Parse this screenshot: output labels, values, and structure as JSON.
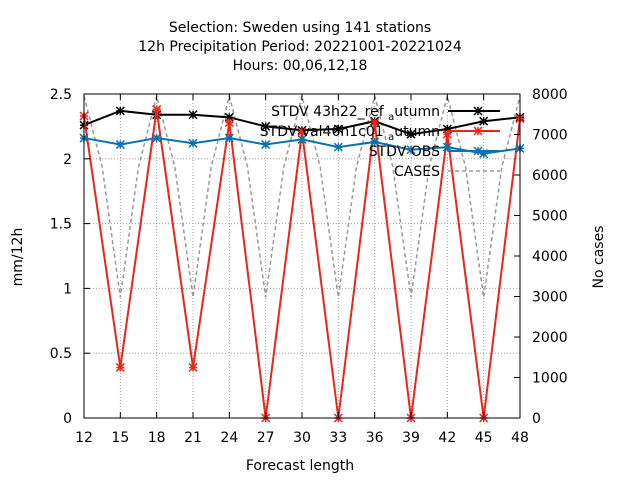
{
  "chart_data": {
    "type": "line",
    "title_lines": [
      "Selection: Sweden using   141 stations",
      "12h Precipitation   Period: 20221001-20221024",
      "Hours:  00,06,12,18"
    ],
    "xlabel": "Forecast length",
    "ylabel": "mm/12h",
    "y2label": "No cases",
    "x": [
      12,
      15,
      18,
      21,
      24,
      27,
      30,
      33,
      36,
      39,
      42,
      45,
      48
    ],
    "xlim": [
      12,
      48
    ],
    "ylim": [
      0,
      2.5
    ],
    "y2lim": [
      0,
      8000
    ],
    "yticks": [
      "0",
      "0.5",
      "1",
      "1.5",
      "2",
      "2.5"
    ],
    "y2ticks": [
      "0",
      "1000",
      "2000",
      "3000",
      "4000",
      "5000",
      "6000",
      "7000",
      "8000"
    ],
    "grid": true,
    "legend_position": "top-right",
    "series": [
      {
        "name": "STDV 43h22_ref_autumn",
        "name_main": "STDV 43h22_ref",
        "name_sub": "a",
        "name_tail": "utumn",
        "axis": "y",
        "color": "#000000",
        "marker": "star",
        "values": [
          2.26,
          2.37,
          2.34,
          2.34,
          2.32,
          2.25,
          2.22,
          2.23,
          2.29,
          2.19,
          2.23,
          2.29,
          2.32
        ]
      },
      {
        "name": "STDV val46h1c01_autumn",
        "name_main": "STDV val46h1c01",
        "name_sub": "a",
        "name_tail": "utumn",
        "axis": "y",
        "color": "#e8261c",
        "marker": "star",
        "values": [
          2.33,
          0.39,
          2.38,
          0.39,
          2.28,
          0.0,
          2.21,
          0.0,
          2.28,
          0.0,
          2.19,
          0.0,
          2.31
        ]
      },
      {
        "name": "STDV OBS",
        "axis": "y",
        "color": "#0a73ad",
        "marker": "star",
        "values": [
          2.16,
          2.11,
          2.16,
          2.12,
          2.16,
          2.11,
          2.15,
          2.09,
          2.13,
          2.07,
          2.09,
          2.04,
          2.08
        ]
      },
      {
        "name": "CASES",
        "axis": "y2",
        "color": "#999999",
        "dashed": true,
        "x": [
          12,
          13.5,
          15,
          16.5,
          18,
          19.5,
          21,
          22.5,
          24,
          25.5,
          27,
          28.5,
          30,
          31.5,
          33,
          34.5,
          36,
          37.5,
          39,
          40.5,
          42,
          43.5,
          45,
          46.5,
          48
        ],
        "values": [
          7950,
          6200,
          2980,
          6200,
          7950,
          6200,
          2980,
          6200,
          7950,
          6200,
          2980,
          6200,
          7950,
          6200,
          2980,
          6200,
          7950,
          6200,
          2980,
          6200,
          7950,
          6200,
          2980,
          6200,
          7950
        ]
      }
    ]
  }
}
